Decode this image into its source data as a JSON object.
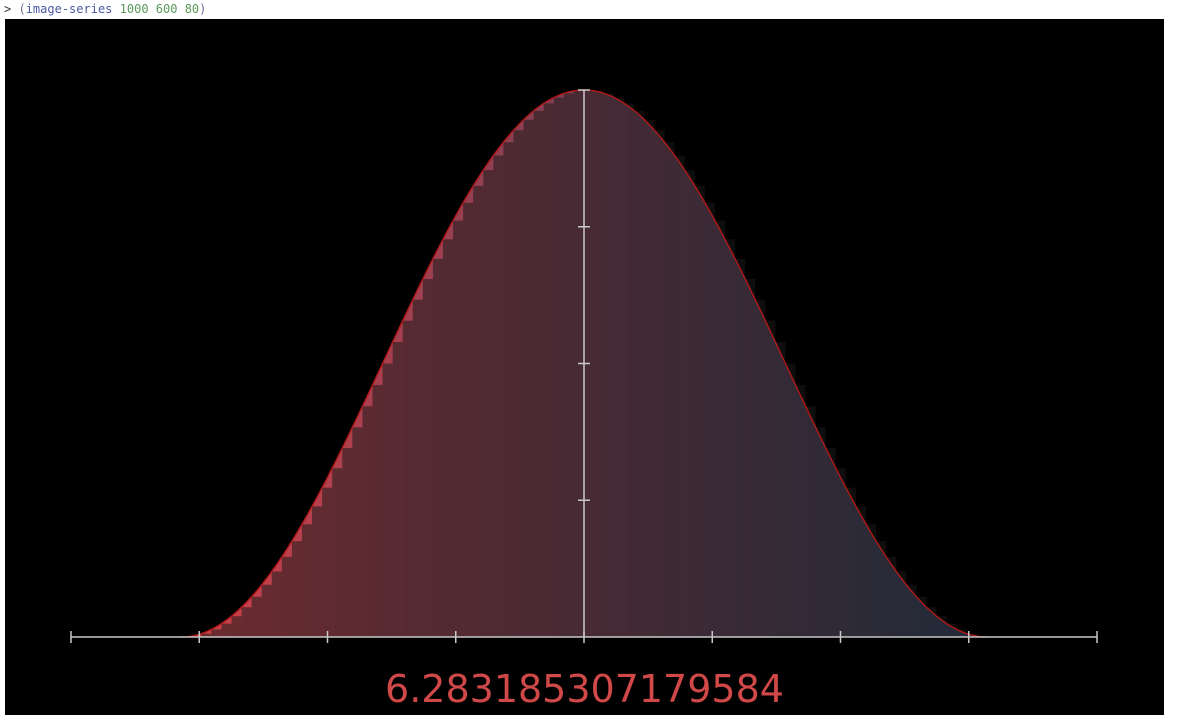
{
  "prompt": {
    "symbol": ">",
    "open_paren": "(",
    "function": "image-series",
    "args": [
      "1000",
      "600",
      "80"
    ],
    "close_paren": ")"
  },
  "result_text": "6.283185307179584",
  "colors": {
    "fill_left": "#d2404a",
    "fill_right": "#2a3e5e",
    "curve": "#b01818",
    "axis": "#c8c8c8",
    "bars": "#1a1a1a",
    "result": "#d04848",
    "background": "#000000"
  },
  "chart_data": {
    "type": "area",
    "title": "",
    "xlabel": "",
    "ylabel": "",
    "xlim": [
      -4,
      4
    ],
    "ylim": [
      0,
      2
    ],
    "x_ticks": [
      -4,
      -3,
      -2,
      -1,
      0,
      1,
      2,
      3,
      4
    ],
    "y_ticks": [
      0,
      1,
      2
    ],
    "curve": "1 + cos(x) for x in [-pi, pi]",
    "domain": [
      -3.141592653589793,
      3.141592653589793
    ],
    "bar_count": 80,
    "integral_estimate": 6.283185307179584,
    "grid": false,
    "legend": "none"
  }
}
